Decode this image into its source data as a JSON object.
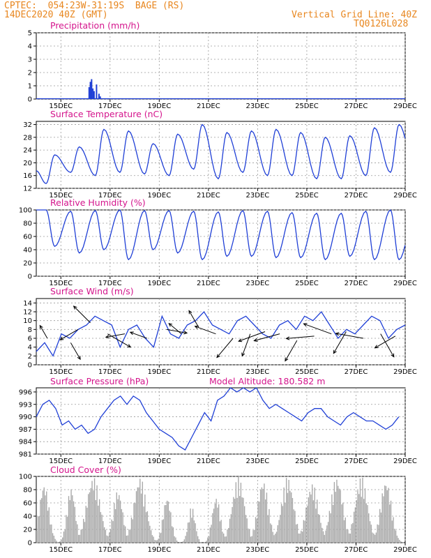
{
  "header": {
    "line1_left": "CPTEC:  054:23W-31:19S  BAGE (RS)",
    "line2_left": "14DEC2020 40Z (GMT)",
    "line1_right": "Vertical Grid Line: 40Z",
    "line2_right": "TQ0126L028"
  },
  "colors": {
    "line": "#1f3fd6",
    "title": "#d4148c",
    "header": "#e8861e",
    "cloud": "#a8a8a8",
    "wind": "#000000"
  },
  "x_tick_labels": [
    "15DEC",
    "17DEC",
    "19DEC",
    "21DEC",
    "23DEC",
    "25DEC",
    "27DEC",
    "29DEC"
  ],
  "chart_data": [
    {
      "id": "precip",
      "type": "bar",
      "title": "Precipitation (mm/h)",
      "x_unit": "days since 14DEC2020 00Z",
      "xlim": [
        0,
        15
      ],
      "ylim": [
        0,
        5
      ],
      "yticks": [
        0,
        1,
        2,
        3,
        4,
        5
      ],
      "x": [
        2.15,
        2.2,
        2.25,
        2.3,
        2.35,
        2.45,
        2.55,
        2.6
      ],
      "values": [
        0.9,
        1.3,
        1.5,
        0.8,
        0.6,
        1.1,
        0.4,
        0.2
      ]
    },
    {
      "id": "temp",
      "type": "line",
      "title": "Surface Temperature (nC)",
      "xlim": [
        0,
        15
      ],
      "ylim": [
        12,
        33
      ],
      "yticks": [
        12,
        16,
        20,
        24,
        28,
        32
      ],
      "daily_max": [
        22.5,
        25,
        30.5,
        30,
        26,
        29,
        32,
        29.5,
        30,
        30.5,
        29.5,
        28,
        28.5,
        31,
        32,
        31
      ],
      "daily_min": [
        13.5,
        17,
        16,
        17,
        16.5,
        16,
        18,
        15,
        17,
        16,
        16,
        15,
        15,
        16,
        17,
        18
      ],
      "start_value": 17.5
    },
    {
      "id": "rh",
      "type": "line",
      "title": "Relative Humidity (%)",
      "xlim": [
        0,
        15
      ],
      "ylim": [
        0,
        100
      ],
      "yticks": [
        0,
        20,
        40,
        60,
        80,
        100
      ],
      "daily_max": [
        100,
        98,
        99,
        100,
        99,
        99,
        98,
        97,
        99,
        98,
        96,
        95,
        95,
        98,
        100,
        95
      ],
      "daily_min": [
        45,
        35,
        40,
        25,
        40,
        35,
        25,
        30,
        30,
        28,
        28,
        25,
        30,
        25,
        25,
        30
      ],
      "start_value": 100
    },
    {
      "id": "wind",
      "type": "line",
      "title": "Surface Wind (m/s)",
      "xlim": [
        0,
        15
      ],
      "ylim": [
        0,
        15
      ],
      "yticks": [
        0,
        2,
        4,
        6,
        8,
        10,
        12,
        14
      ],
      "values": [
        3,
        5,
        2,
        7,
        6,
        8,
        9,
        11,
        10,
        9,
        4,
        8,
        9,
        6,
        4,
        11,
        7,
        6,
        9,
        10,
        12,
        9,
        8,
        7,
        10,
        11,
        9,
        7,
        6,
        9,
        10,
        8,
        11,
        10,
        12,
        9,
        6,
        8,
        7,
        9,
        11,
        10,
        6,
        8,
        9
      ],
      "arrows_x": [
        0.45,
        1.4,
        1.7,
        2.2,
        2.9,
        3.6,
        4.5,
        5.3,
        5.9,
        6.6,
        7.3,
        8.0,
        8.7,
        9.3,
        9.9,
        10.6,
        11.3,
        12.0,
        12.6,
        13.3,
        14.0,
        14.6
      ],
      "arrows_y": [
        6.0,
        5.0,
        8.0,
        9.5,
        7.0,
        7.0,
        6.0,
        8.0,
        7.0,
        8.5,
        7.0,
        6.0,
        7.0,
        7.5,
        7.0,
        5.5,
        6.5,
        7.0,
        7.5,
        6.0,
        7.0,
        6.5
      ],
      "arrows_dir_deg": [
        120,
        300,
        210,
        135,
        330,
        190,
        160,
        350,
        140,
        120,
        160,
        230,
        250,
        200,
        195,
        240,
        185,
        160,
        240,
        170,
        300,
        210
      ],
      "arrows_len": [
        1.0,
        1.3,
        1.4,
        1.6,
        1.8,
        1.3,
        1.2,
        1.4,
        1.1,
        1.3,
        1.5,
        1.7,
        1.6,
        1.9,
        1.8,
        1.6,
        1.9,
        2.0,
        1.7,
        1.9,
        1.8,
        1.6
      ]
    },
    {
      "id": "pressure",
      "type": "line",
      "title": "Surface Pressure (hPa)",
      "subtitle": "Model Altitude: 180.582 m",
      "xlim": [
        0,
        15
      ],
      "ylim": [
        981,
        997
      ],
      "yticks": [
        981,
        984,
        987,
        990,
        993,
        996
      ],
      "values": [
        990,
        993,
        994,
        992,
        988,
        989,
        987,
        988,
        986,
        987,
        990,
        992,
        994,
        995,
        993,
        995,
        994,
        991,
        989,
        987,
        986,
        985,
        983,
        982,
        985,
        988,
        991,
        989,
        994,
        995,
        997,
        996,
        997,
        996,
        997,
        994,
        992,
        993,
        992,
        991,
        990,
        989,
        991,
        992,
        992,
        990,
        989,
        988,
        990,
        991,
        990,
        989,
        989,
        988,
        987,
        988,
        990
      ],
      "x_step": 0.2632
    },
    {
      "id": "cloud",
      "type": "bar",
      "title": "Cloud Cover (%)",
      "xlim": [
        0,
        15
      ],
      "ylim": [
        0,
        100
      ],
      "yticks": [
        0,
        20,
        40,
        60,
        80,
        100
      ],
      "centers": [
        0.3,
        1.4,
        2.3,
        3.3,
        4.2,
        5.3,
        6.3,
        7.3,
        8.2,
        9.2,
        10.2,
        11.2,
        12.2,
        13.2,
        14.2
      ],
      "peaks": [
        90,
        85,
        100,
        80,
        100,
        70,
        55,
        70,
        100,
        95,
        100,
        90,
        100,
        100,
        95
      ],
      "widths": [
        0.35,
        0.3,
        0.5,
        0.35,
        0.45,
        0.3,
        0.25,
        0.3,
        0.45,
        0.4,
        0.45,
        0.45,
        0.45,
        0.45,
        0.4
      ]
    }
  ]
}
